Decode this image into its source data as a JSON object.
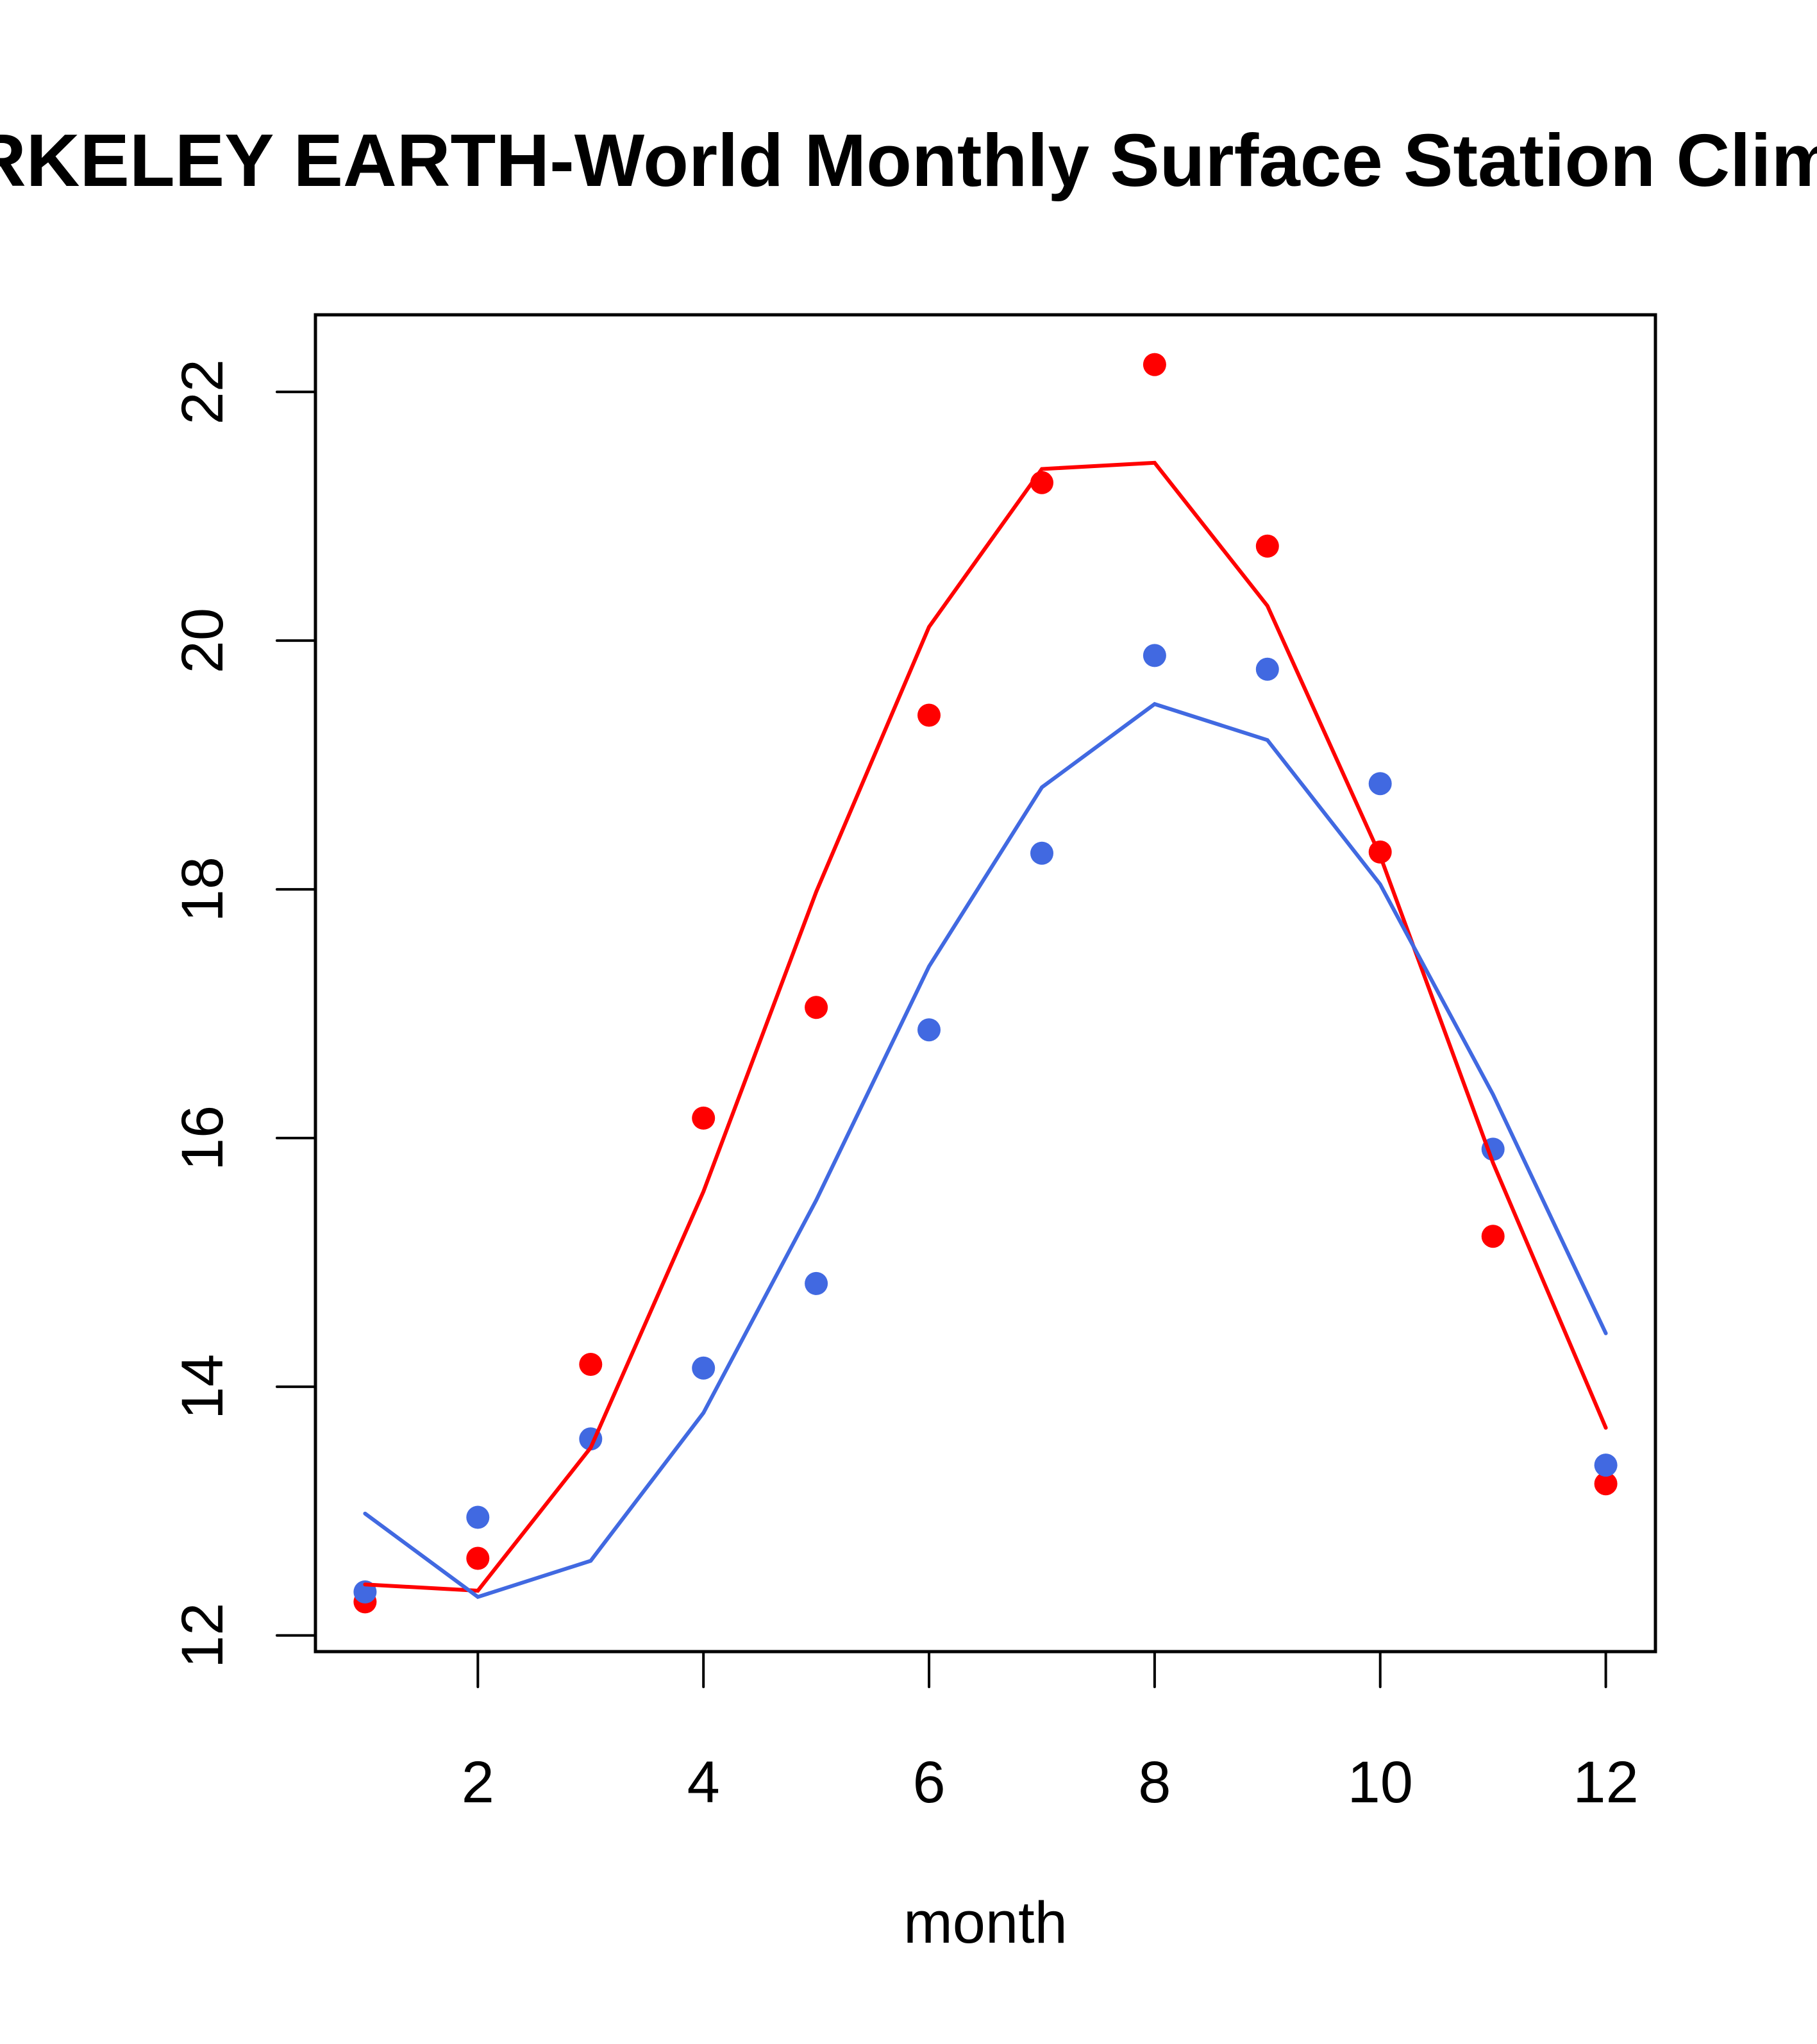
{
  "chart_data": {
    "type": "line",
    "title": "BERKELEY EARTH-World Monthly Surface Station Climatology",
    "xlabel": "month",
    "ylabel": "",
    "xlim": [
      0.56,
      12.44
    ],
    "ylim": [
      11.87,
      22.62
    ],
    "grid": false,
    "legend": "none",
    "x": [
      1,
      2,
      3,
      4,
      5,
      6,
      7,
      8,
      9,
      10,
      11,
      12
    ],
    "x_ticks": [
      2,
      4,
      6,
      8,
      10,
      12
    ],
    "x_tick_labels": [
      "2",
      "4",
      "6",
      "8",
      "10",
      "12"
    ],
    "y_ticks": [
      12,
      14,
      16,
      18,
      20,
      22
    ],
    "y_tick_labels": [
      "12",
      "14",
      "16",
      "18",
      "20",
      "22"
    ],
    "series": [
      {
        "name": "red-points",
        "kind": "points",
        "color": "#ff0000",
        "values": [
          12.27,
          12.62,
          14.18,
          16.16,
          17.05,
          19.4,
          21.27,
          22.22,
          20.76,
          18.3,
          15.21,
          13.22
        ]
      },
      {
        "name": "red-line",
        "kind": "line",
        "color": "#ff0000",
        "values": [
          12.41,
          12.36,
          13.51,
          15.57,
          17.98,
          20.11,
          21.38,
          21.43,
          20.28,
          18.27,
          15.8,
          13.67
        ]
      },
      {
        "name": "blue-points",
        "kind": "points",
        "color": "#4169e1",
        "values": [
          12.35,
          12.95,
          13.58,
          14.15,
          14.83,
          16.87,
          18.29,
          19.88,
          19.77,
          18.85,
          15.91,
          13.37
        ]
      },
      {
        "name": "blue-line",
        "kind": "line",
        "color": "#4169e1",
        "values": [
          12.98,
          12.31,
          12.6,
          13.79,
          15.5,
          17.38,
          18.82,
          19.49,
          19.2,
          18.04,
          16.35,
          14.43
        ]
      }
    ]
  }
}
